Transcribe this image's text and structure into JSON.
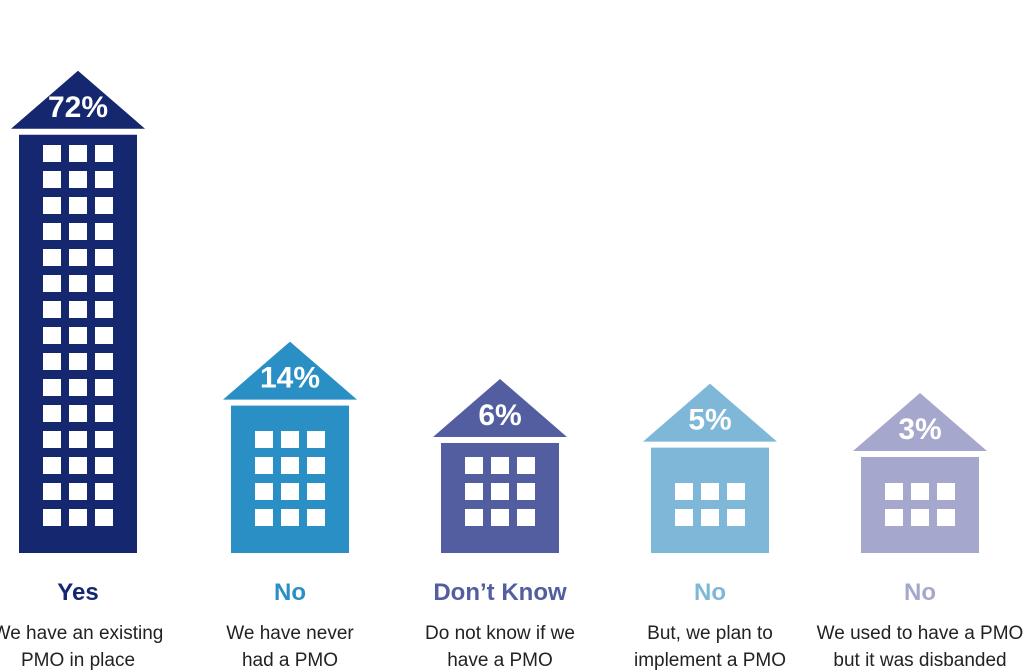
{
  "chart_data": {
    "type": "bar",
    "categories": [
      "Yes",
      "No",
      "Don’t Know",
      "No",
      "No"
    ],
    "descriptions": [
      [
        "We have an existing",
        "PMO in place"
      ],
      [
        "We have never",
        "had a PMO"
      ],
      [
        "Do not know if we",
        "have a PMO"
      ],
      [
        "But, we plan to",
        "implement a PMO"
      ],
      [
        "We used to have a PMO",
        "but it was disbanded"
      ]
    ],
    "values": [
      72,
      14,
      6,
      5,
      3
    ],
    "value_labels": [
      "72%",
      "14%",
      "6%",
      "5%",
      "3%"
    ],
    "colors": [
      "#14276f",
      "#2a8fc4",
      "#535ea0",
      "#7fb7d9",
      "#a6a7cc"
    ],
    "title": "",
    "xlabel": "",
    "ylabel": ""
  }
}
